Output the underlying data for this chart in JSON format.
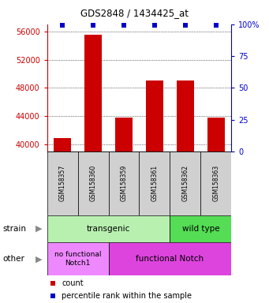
{
  "title": "GDS2848 / 1434425_at",
  "samples": [
    "GSM158357",
    "GSM158360",
    "GSM158359",
    "GSM158361",
    "GSM158362",
    "GSM158363"
  ],
  "counts": [
    40900,
    55500,
    43800,
    49000,
    49100,
    43800
  ],
  "ylim_left": [
    39000,
    57000
  ],
  "yticks_left": [
    40000,
    44000,
    48000,
    52000,
    56000
  ],
  "ylim_right": [
    0,
    100
  ],
  "yticks_right": [
    0,
    25,
    50,
    75,
    100
  ],
  "bar_color": "#cc0000",
  "percentile_color": "#0000cc",
  "bar_bottom": 39000,
  "tick_label_color_left": "#cc0000",
  "tick_label_color_right": "#0000cc",
  "sample_box_color": "#d0d0d0",
  "transgenic_color": "#b8f0b0",
  "wildtype_color": "#55dd55",
  "nofunc_color": "#ee88ff",
  "func_color": "#dd44dd",
  "legend_count": "count",
  "legend_pct": "percentile rank within the sample",
  "bg_color": "#ffffff"
}
